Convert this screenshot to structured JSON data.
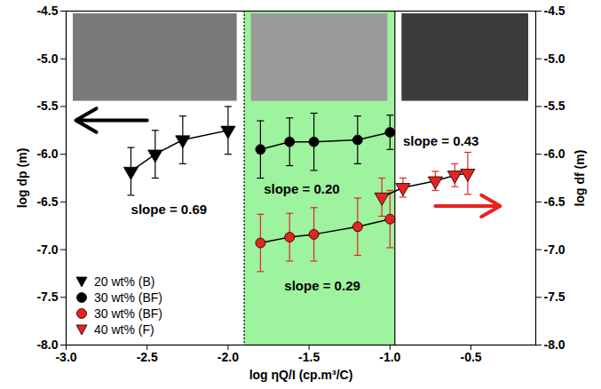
{
  "chart_data": {
    "type": "scatter",
    "xlabel": "log ηQ/I (cp.m³/C)",
    "ylabel": "log dp (m)",
    "y2label": "log df (m)",
    "xlim": [
      -3.0,
      -0.1
    ],
    "xticks": [
      {
        "value": -3.0,
        "label": "-3.0"
      },
      {
        "value": -2.5,
        "label": "-2.5"
      },
      {
        "value": -2.0,
        "label": "-2.0"
      },
      {
        "value": -1.5,
        "label": "-1.5"
      },
      {
        "value": -1.0,
        "label": "-1.0"
      },
      {
        "value": -0.5,
        "label": "-0.5"
      }
    ],
    "ylim": [
      -8.0,
      -4.5
    ],
    "yticks": [
      {
        "value": -8.0,
        "label": "-8.0"
      },
      {
        "value": -7.5,
        "label": "-7.5"
      },
      {
        "value": -7.0,
        "label": "-7.0"
      },
      {
        "value": -6.5,
        "label": "-6.5"
      },
      {
        "value": -6.0,
        "label": "-6.0"
      },
      {
        "value": -5.5,
        "label": "-5.5"
      },
      {
        "value": -5.0,
        "label": "-5.0"
      },
      {
        "value": -4.5,
        "label": "-4.5"
      }
    ],
    "y2lim": [
      -8.0,
      -4.5
    ],
    "y2ticks": [
      {
        "value": -8.0,
        "label": "-8.0"
      },
      {
        "value": -7.5,
        "label": "-7.5"
      },
      {
        "value": -7.0,
        "label": "-7.0"
      },
      {
        "value": -6.5,
        "label": "-6.5"
      },
      {
        "value": -6.0,
        "label": "-6.0"
      },
      {
        "value": -5.5,
        "label": "-5.5"
      },
      {
        "value": -5.0,
        "label": "-5.0"
      },
      {
        "value": -4.5,
        "label": "-4.5"
      }
    ],
    "legend": "lower left",
    "region": {
      "x": [
        -1.9,
        -0.97
      ],
      "color": "#9ef39e"
    },
    "series": [
      {
        "name": "20 wt% (B)",
        "color": "#000000",
        "marker": "triangle-down",
        "axis": "y",
        "x": [
          -2.6,
          -2.45,
          -2.28,
          -2.0
        ],
        "values": [
          -6.18,
          -6.0,
          -5.85,
          -5.75
        ],
        "error": [
          0.25,
          0.25,
          0.25,
          0.25
        ],
        "annotation": "slope = 0.69"
      },
      {
        "name": "30 wt% (BF)",
        "color": "#000000",
        "marker": "circle",
        "axis": "y",
        "x": [
          -1.8,
          -1.62,
          -1.47,
          -1.2,
          -1.0
        ],
        "values": [
          -5.95,
          -5.87,
          -5.87,
          -5.85,
          -5.77
        ],
        "error": [
          0.3,
          0.25,
          0.3,
          0.25,
          0.18
        ],
        "annotation": "slope = 0.20"
      },
      {
        "name": "30 wt% (BF)",
        "color": "#e8231e",
        "marker": "circle",
        "axis": "y2",
        "x": [
          -1.8,
          -1.62,
          -1.47,
          -1.2,
          -1.0
        ],
        "values": [
          -6.93,
          -6.87,
          -6.84,
          -6.76,
          -6.68
        ],
        "error": [
          0.3,
          0.25,
          0.28,
          0.3,
          0.3
        ],
        "annotation": "slope = 0.29"
      },
      {
        "name": "40 wt% (F)",
        "color": "#e8231e",
        "marker": "triangle-down",
        "axis": "y2",
        "x": [
          -1.05,
          -0.92,
          -0.72,
          -0.6,
          -0.52
        ],
        "values": [
          -6.45,
          -6.35,
          -6.28,
          -6.22,
          -6.2
        ],
        "error": [
          0.2,
          0.1,
          0.1,
          0.12,
          0.22
        ],
        "annotation": "slope = 0.43"
      }
    ]
  }
}
